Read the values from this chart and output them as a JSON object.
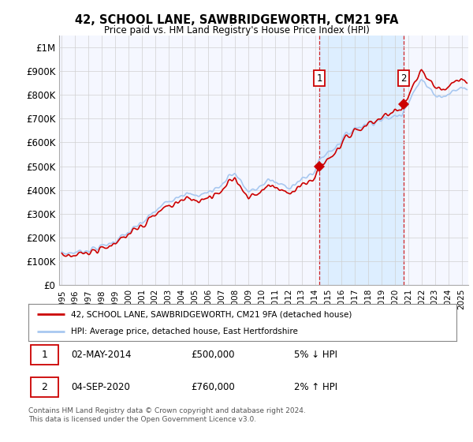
{
  "title": "42, SCHOOL LANE, SAWBRIDGEWORTH, CM21 9FA",
  "subtitle": "Price paid vs. HM Land Registry's House Price Index (HPI)",
  "legend_line1": "42, SCHOOL LANE, SAWBRIDGEWORTH, CM21 9FA (detached house)",
  "legend_line2": "HPI: Average price, detached house, East Hertfordshire",
  "annotation1_label": "1",
  "annotation1_date": "02-MAY-2014",
  "annotation1_price": "£500,000",
  "annotation1_hpi": "5% ↓ HPI",
  "annotation2_label": "2",
  "annotation2_date": "04-SEP-2020",
  "annotation2_price": "£760,000",
  "annotation2_hpi": "2% ↑ HPI",
  "footer": "Contains HM Land Registry data © Crown copyright and database right 2024.\nThis data is licensed under the Open Government Licence v3.0.",
  "sale1_year": 2014.33,
  "sale1_value": 500000,
  "sale2_year": 2020.67,
  "sale2_value": 760000,
  "hpi_color": "#a8c8f0",
  "price_color": "#cc0000",
  "shade_color": "#ddeeff",
  "background_color": "#ffffff",
  "plot_bg_color": "#f5f7ff",
  "grid_color": "#d0d0d0",
  "ylim": [
    0,
    1050000
  ],
  "xlim_start": 1994.8,
  "xlim_end": 2025.5,
  "yticks": [
    0,
    100000,
    200000,
    300000,
    400000,
    500000,
    600000,
    700000,
    800000,
    900000,
    1000000
  ],
  "ytick_labels": [
    "£0",
    "£100K",
    "£200K",
    "£300K",
    "£400K",
    "£500K",
    "£600K",
    "£700K",
    "£800K",
    "£900K",
    "£1M"
  ],
  "xticks": [
    1995,
    1996,
    1997,
    1998,
    1999,
    2000,
    2001,
    2002,
    2003,
    2004,
    2005,
    2006,
    2007,
    2008,
    2009,
    2010,
    2011,
    2012,
    2013,
    2014,
    2015,
    2016,
    2017,
    2018,
    2019,
    2020,
    2021,
    2022,
    2023,
    2024,
    2025
  ]
}
